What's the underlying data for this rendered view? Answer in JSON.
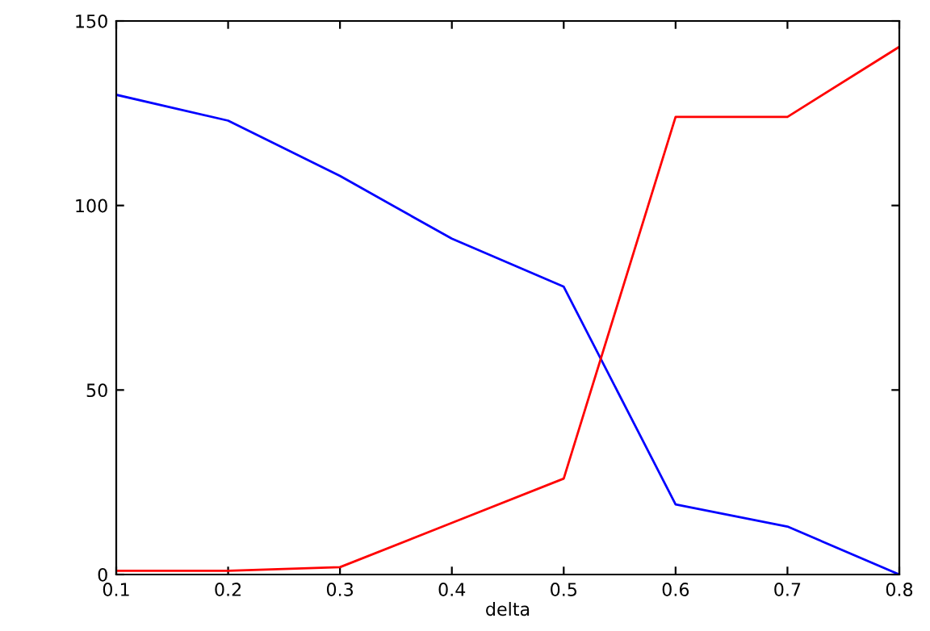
{
  "chart_data": {
    "type": "line",
    "xlabel": "delta",
    "x": [
      0.1,
      0.2,
      0.3,
      0.4,
      0.5,
      0.6,
      0.7,
      0.8
    ],
    "series": [
      {
        "color": "#0000ff",
        "values": [
          130,
          123,
          108,
          91,
          78,
          19,
          13,
          0
        ]
      },
      {
        "color": "#ff0000",
        "values": [
          1,
          1,
          2,
          14,
          26,
          124,
          124,
          143
        ]
      }
    ],
    "xlim": [
      0.1,
      0.8
    ],
    "ylim": [
      0,
      150
    ],
    "xticks": [
      0.1,
      0.2,
      0.3,
      0.4,
      0.5,
      0.6,
      0.7,
      0.8
    ],
    "yticks": [
      0,
      50,
      100,
      150
    ],
    "grid": false,
    "legend": false,
    "marker": "none",
    "line_style": "solid"
  }
}
